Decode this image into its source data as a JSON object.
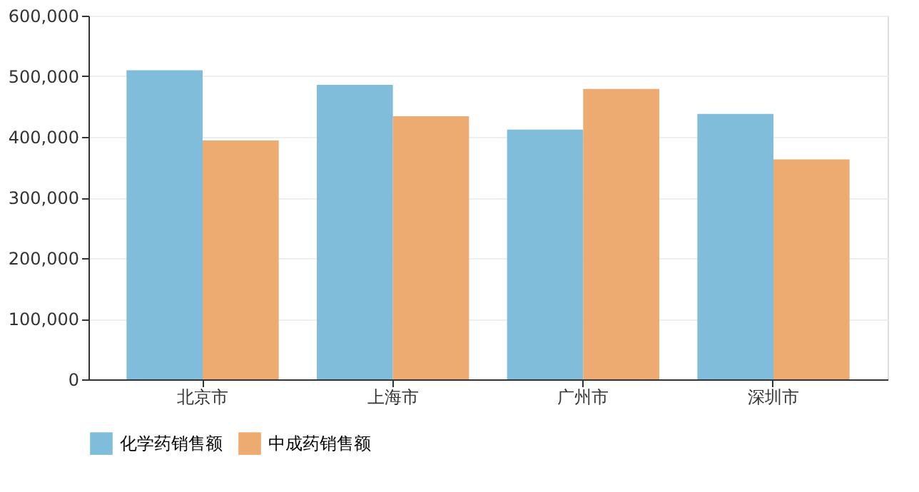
{
  "chart_data": {
    "type": "bar",
    "categories": [
      "北京市",
      "上海市",
      "广州市",
      "深圳市"
    ],
    "series": [
      {
        "name": "化学药销售额",
        "color": "#7fbddb",
        "values": [
          510000,
          486000,
          412000,
          438000
        ]
      },
      {
        "name": "中成药销售额",
        "color": "#edaa71",
        "values": [
          394000,
          434000,
          479000,
          363000
        ]
      }
    ],
    "ylim": [
      0,
      600000
    ],
    "yticks": [
      0,
      {
        "value": 100000,
        "label": "100,000"
      },
      {
        "value": 200000,
        "label": "200,000"
      },
      {
        "value": 300000,
        "label": "300,000"
      },
      {
        "value": 400000,
        "label": "400,000"
      },
      {
        "value": 500000,
        "label": "500,000"
      },
      {
        "value": 600000,
        "label": "600,000"
      }
    ],
    "grid": "y",
    "legend": "bottom"
  }
}
